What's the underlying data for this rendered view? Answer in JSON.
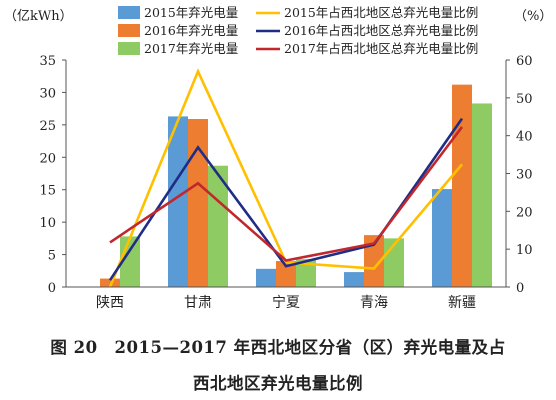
{
  "chart_data": {
    "type": "bar",
    "categories": [
      "陕西",
      "甘肃",
      "宁夏",
      "青海",
      "新疆"
    ],
    "series": [
      {
        "name": "2015年弃光电量",
        "kind": "bar",
        "axis": "left",
        "color": "#5b9bd5",
        "values": [
          0,
          26.3,
          2.8,
          2.3,
          15.1
        ]
      },
      {
        "name": "2016年弃光电量",
        "kind": "bar",
        "axis": "left",
        "color": "#ed7d31",
        "values": [
          1.3,
          25.9,
          4.0,
          8.0,
          31.2
        ]
      },
      {
        "name": "2017年弃光电量",
        "kind": "bar",
        "axis": "left",
        "color": "#8fcb63",
        "values": [
          7.8,
          18.7,
          4.3,
          7.5,
          28.3
        ]
      },
      {
        "name": "2015年占西北地区总弃光电量比例",
        "kind": "line",
        "axis": "right",
        "color": "#ffc000",
        "values": [
          0,
          57,
          6.5,
          4.9,
          32.4
        ]
      },
      {
        "name": "2016年占西北地区总弃光电量比例",
        "kind": "line",
        "axis": "right",
        "color": "#1f2d86",
        "values": [
          1.8,
          36.9,
          5.5,
          11.2,
          44.5
        ]
      },
      {
        "name": "2017年占西北地区总弃光电量比例",
        "kind": "line",
        "axis": "right",
        "color": "#c0282d",
        "values": [
          11.8,
          27.4,
          7.0,
          11.5,
          42.3
        ]
      }
    ],
    "ylabel_left": "（亿kWh）",
    "ylabel_right": "（%）",
    "ylim_left": [
      0,
      35
    ],
    "ylim_right": [
      0,
      60
    ],
    "yticks_left": [
      "0",
      "5",
      "10",
      "15",
      "20",
      "25",
      "30",
      "35"
    ],
    "yticks_right": [
      "0",
      "10",
      "20",
      "30",
      "40",
      "50",
      "60"
    ],
    "legend_position": "top"
  },
  "caption_line1": "图 20　2015—2017 年西北地区分省（区）弃光电量及占",
  "caption_line2": "西北地区弃光电量比例"
}
